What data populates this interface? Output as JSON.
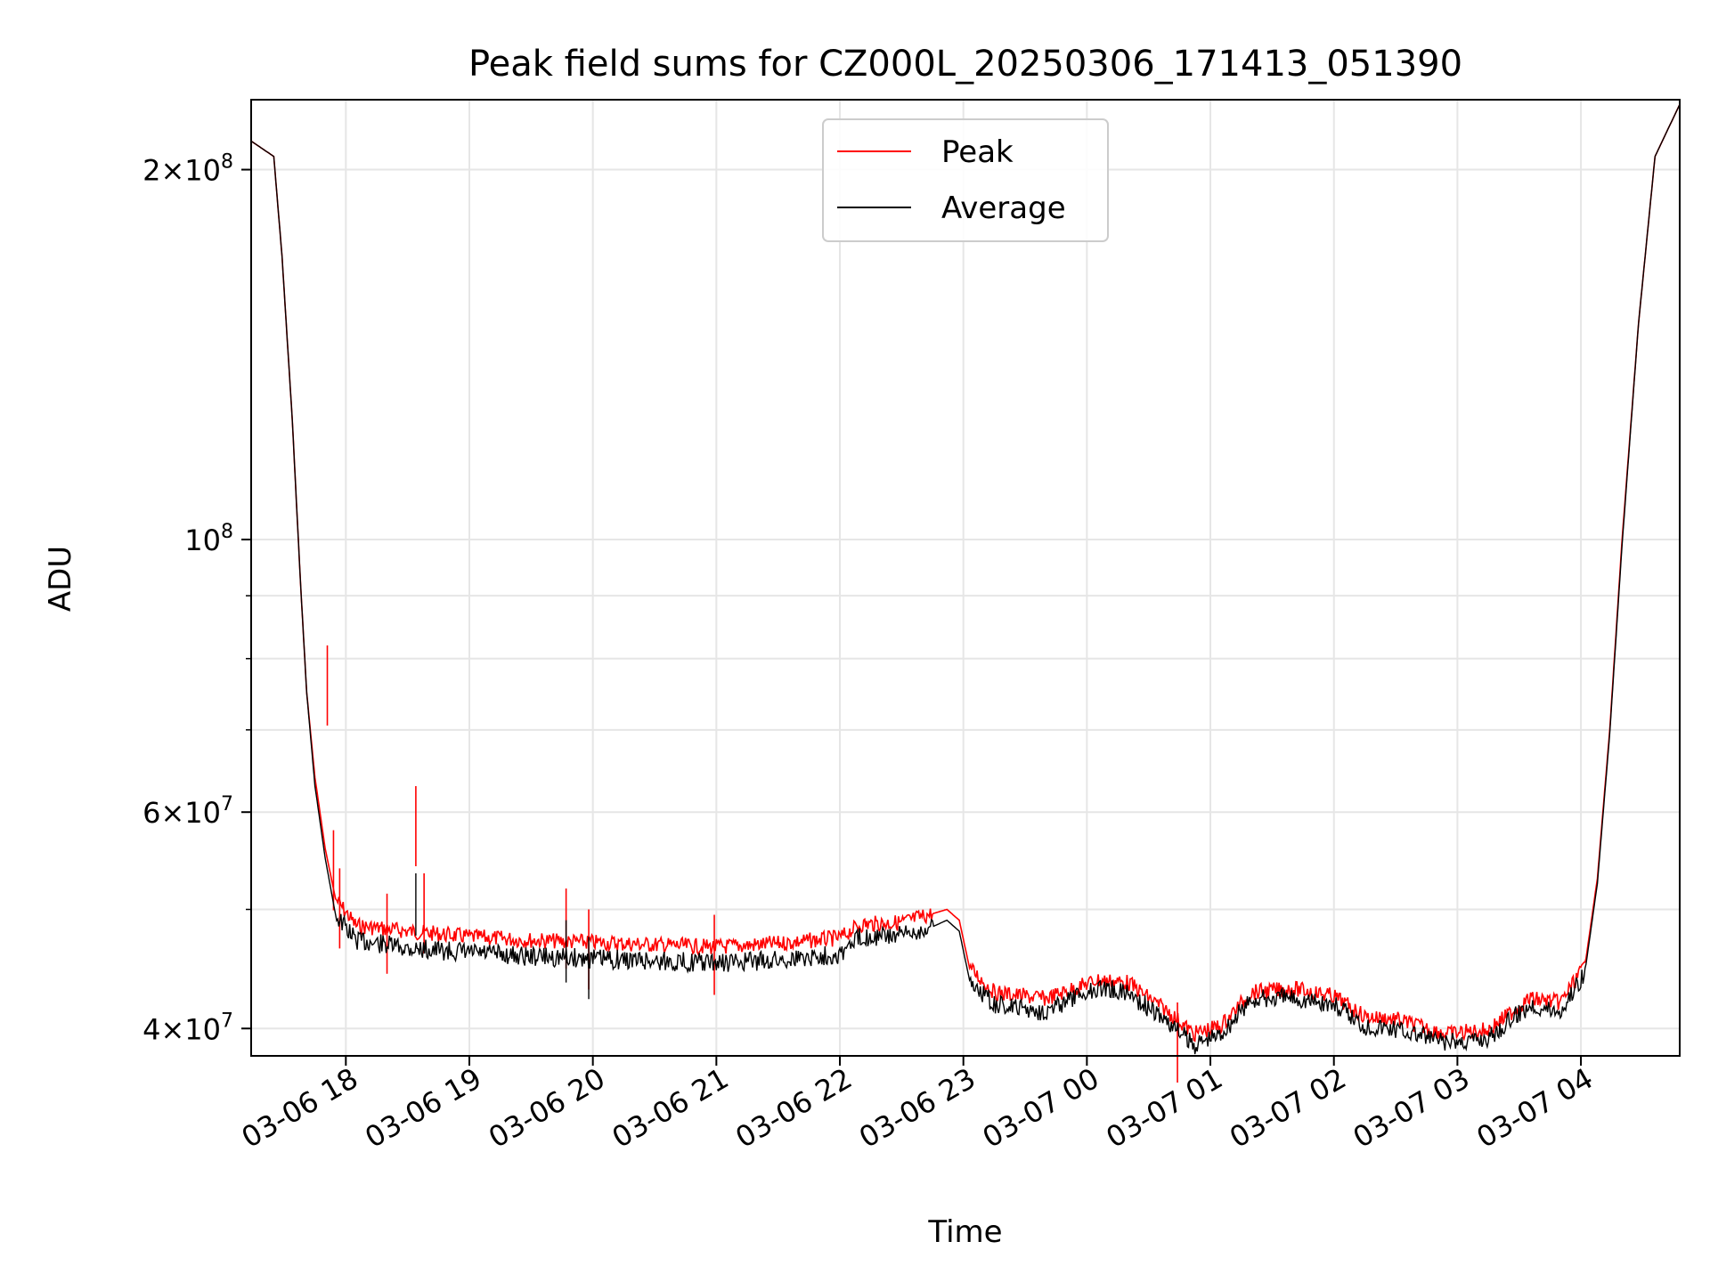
{
  "chart_data": {
    "type": "line",
    "title": "Peak field sums for CZ000L_20250306_171413_051390",
    "xlabel": "Time",
    "ylabel": "ADU",
    "y_scale": "log",
    "ylim": [
      38000000,
      228000000
    ],
    "xlim": [
      "2025-03-06 17:14",
      "2025-03-07 04:48"
    ],
    "grid": true,
    "legend_position": "upper center",
    "x_ticks": [
      {
        "t": "2025-03-06 18:00",
        "label": "03-06 18"
      },
      {
        "t": "2025-03-06 19:00",
        "label": "03-06 19"
      },
      {
        "t": "2025-03-06 20:00",
        "label": "03-06 20"
      },
      {
        "t": "2025-03-06 21:00",
        "label": "03-06 21"
      },
      {
        "t": "2025-03-06 22:00",
        "label": "03-06 22"
      },
      {
        "t": "2025-03-06 23:00",
        "label": "03-06 23"
      },
      {
        "t": "2025-03-07 00:00",
        "label": "03-07 00"
      },
      {
        "t": "2025-03-07 01:00",
        "label": "03-07 01"
      },
      {
        "t": "2025-03-07 02:00",
        "label": "03-07 02"
      },
      {
        "t": "2025-03-07 03:00",
        "label": "03-07 03"
      },
      {
        "t": "2025-03-07 04:00",
        "label": "03-07 04"
      }
    ],
    "y_ticks": [
      {
        "value": 40000000,
        "base": "4",
        "exp": "7"
      },
      {
        "value": 60000000,
        "base": "6",
        "exp": "7"
      },
      {
        "value": 100000000,
        "base": "",
        "exp": "8"
      },
      {
        "value": 200000000,
        "base": "2",
        "exp": "8"
      }
    ],
    "y_minor_ticks": [
      50000000,
      70000000,
      80000000,
      90000000
    ],
    "series": [
      {
        "name": "Peak",
        "color": "#ff0000",
        "points": [
          [
            "2025-03-06 17:14",
            211000000
          ],
          [
            "2025-03-06 17:25",
            205000000
          ],
          [
            "2025-03-06 17:29",
            170000000
          ],
          [
            "2025-03-06 17:34",
            125000000
          ],
          [
            "2025-03-06 17:38",
            92000000
          ],
          [
            "2025-03-06 17:41",
            75000000
          ],
          [
            "2025-03-06 17:45",
            64000000
          ],
          [
            "2025-03-06 17:50",
            56000000
          ],
          [
            "2025-03-06 17:55",
            51000000
          ],
          [
            "2025-03-06 18:05",
            48500000
          ],
          [
            "2025-03-06 18:30",
            48000000
          ],
          [
            "2025-03-06 19:00",
            47500000
          ],
          [
            "2025-03-06 19:30",
            47200000
          ],
          [
            "2025-03-06 20:00",
            47000000
          ],
          [
            "2025-03-06 20:30",
            46800000
          ],
          [
            "2025-03-06 21:00",
            46600000
          ],
          [
            "2025-03-06 21:30",
            46900000
          ],
          [
            "2025-03-06 22:00",
            47400000
          ],
          [
            "2025-03-06 22:10",
            48600000
          ],
          [
            "2025-03-06 22:30",
            48800000
          ],
          [
            "2025-03-06 22:45",
            49600000
          ],
          [
            "2025-03-06 22:52",
            50000000
          ],
          [
            "2025-03-06 22:58",
            49000000
          ],
          [
            "2025-03-06 23:03",
            44800000
          ],
          [
            "2025-03-06 23:15",
            42800000
          ],
          [
            "2025-03-06 23:40",
            42300000
          ],
          [
            "2025-03-07 00:05",
            43800000
          ],
          [
            "2025-03-07 00:20",
            43600000
          ],
          [
            "2025-03-07 00:40",
            41200000
          ],
          [
            "2025-03-07 00:52",
            39600000
          ],
          [
            "2025-03-07 01:05",
            40200000
          ],
          [
            "2025-03-07 01:20",
            42800000
          ],
          [
            "2025-03-07 01:40",
            43100000
          ],
          [
            "2025-03-07 02:00",
            42500000
          ],
          [
            "2025-03-07 02:15",
            40900000
          ],
          [
            "2025-03-07 02:30",
            40700000
          ],
          [
            "2025-03-07 02:55",
            39600000
          ],
          [
            "2025-03-07 03:15",
            39900000
          ],
          [
            "2025-03-07 03:35",
            42300000
          ],
          [
            "2025-03-07 03:50",
            42000000
          ],
          [
            "2025-03-07 04:02",
            45000000
          ],
          [
            "2025-03-07 04:08",
            53000000
          ],
          [
            "2025-03-07 04:14",
            70000000
          ],
          [
            "2025-03-07 04:20",
            100000000
          ],
          [
            "2025-03-07 04:28",
            150000000
          ],
          [
            "2025-03-07 04:36",
            205000000
          ],
          [
            "2025-03-07 04:48",
            226000000
          ]
        ],
        "spikes": [
          [
            "2025-03-06 17:51",
            82000000
          ],
          [
            "2025-03-06 17:54",
            58000000
          ],
          [
            "2025-03-06 17:57",
            54000000
          ],
          [
            "2025-03-06 18:20",
            51500000
          ],
          [
            "2025-03-06 18:34",
            63000000
          ],
          [
            "2025-03-06 18:38",
            53500000
          ],
          [
            "2025-03-06 19:47",
            52000000
          ],
          [
            "2025-03-06 19:58",
            50000000
          ],
          [
            "2025-03-06 20:59",
            49500000
          ],
          [
            "2025-03-07 00:44",
            42000000
          ]
        ]
      },
      {
        "name": "Average",
        "color": "#000000",
        "points": [
          [
            "2025-03-06 17:14",
            211000000
          ],
          [
            "2025-03-06 17:25",
            205000000
          ],
          [
            "2025-03-06 17:29",
            170000000
          ],
          [
            "2025-03-06 17:34",
            125000000
          ],
          [
            "2025-03-06 17:38",
            92000000
          ],
          [
            "2025-03-06 17:41",
            75000000
          ],
          [
            "2025-03-06 17:45",
            63000000
          ],
          [
            "2025-03-06 17:50",
            55000000
          ],
          [
            "2025-03-06 17:55",
            49500000
          ],
          [
            "2025-03-06 18:05",
            47200000
          ],
          [
            "2025-03-06 18:30",
            46500000
          ],
          [
            "2025-03-06 19:00",
            46100000
          ],
          [
            "2025-03-06 19:30",
            45800000
          ],
          [
            "2025-03-06 20:00",
            45600000
          ],
          [
            "2025-03-06 20:30",
            45400000
          ],
          [
            "2025-03-06 21:00",
            45200000
          ],
          [
            "2025-03-06 21:30",
            45500000
          ],
          [
            "2025-03-06 22:00",
            46000000
          ],
          [
            "2025-03-06 22:10",
            47500000
          ],
          [
            "2025-03-06 22:30",
            47600000
          ],
          [
            "2025-03-06 22:45",
            48400000
          ],
          [
            "2025-03-06 22:52",
            49000000
          ],
          [
            "2025-03-06 22:58",
            48000000
          ],
          [
            "2025-03-06 23:03",
            43800000
          ],
          [
            "2025-03-06 23:15",
            41800000
          ],
          [
            "2025-03-06 23:40",
            41300000
          ],
          [
            "2025-03-07 00:05",
            43200000
          ],
          [
            "2025-03-07 00:20",
            42800000
          ],
          [
            "2025-03-07 00:40",
            40400000
          ],
          [
            "2025-03-07 00:52",
            38800000
          ],
          [
            "2025-03-07 01:05",
            39600000
          ],
          [
            "2025-03-07 01:20",
            42200000
          ],
          [
            "2025-03-07 01:40",
            42400000
          ],
          [
            "2025-03-07 02:00",
            41800000
          ],
          [
            "2025-03-07 02:15",
            40200000
          ],
          [
            "2025-03-07 02:30",
            40000000
          ],
          [
            "2025-03-07 02:55",
            38900000
          ],
          [
            "2025-03-07 03:15",
            39300000
          ],
          [
            "2025-03-07 03:35",
            41800000
          ],
          [
            "2025-03-07 03:50",
            41300000
          ],
          [
            "2025-03-07 04:02",
            44500000
          ],
          [
            "2025-03-07 04:08",
            52500000
          ],
          [
            "2025-03-07 04:14",
            69500000
          ],
          [
            "2025-03-07 04:20",
            99000000
          ],
          [
            "2025-03-07 04:28",
            150000000
          ],
          [
            "2025-03-07 04:36",
            205000000
          ],
          [
            "2025-03-07 04:48",
            226000000
          ]
        ],
        "spikes": [
          [
            "2025-03-06 18:34",
            53500000
          ],
          [
            "2025-03-06 19:47",
            49000000
          ],
          [
            "2025-03-06 19:58",
            47500000
          ]
        ]
      }
    ]
  }
}
